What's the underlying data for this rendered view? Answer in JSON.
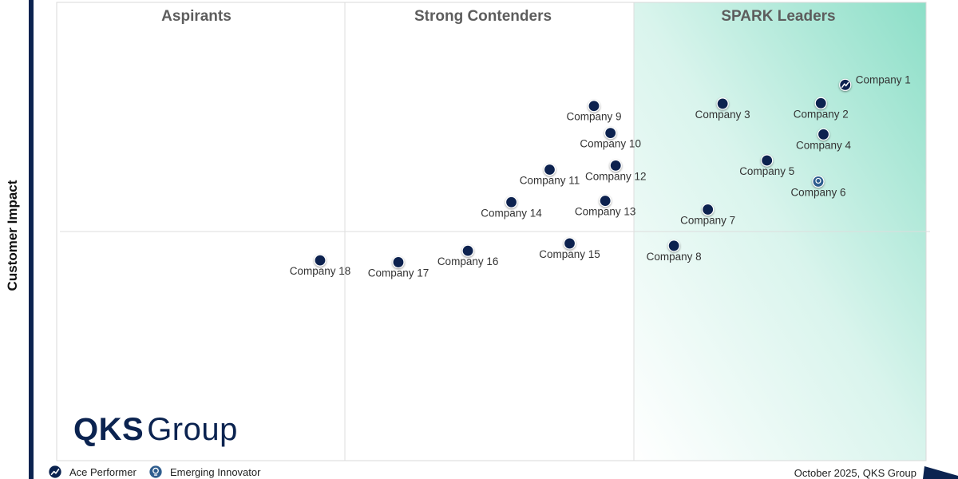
{
  "chart_data": {
    "type": "scatter",
    "title": "",
    "ylabel": "Customer Impact",
    "xlabel": "",
    "xlim": [
      0,
      100
    ],
    "ylim": [
      0,
      100
    ],
    "quadrants": [
      "Aspirants",
      "Strong Contenders",
      "SPARK Leaders"
    ],
    "points": [
      {
        "label": "Company 1",
        "x": 90.7,
        "y": 82.0,
        "marker": "ace"
      },
      {
        "label": "Company 2",
        "x": 87.9,
        "y": 78.0,
        "marker": "default"
      },
      {
        "label": "Company 3",
        "x": 76.6,
        "y": 77.9,
        "marker": "default"
      },
      {
        "label": "Company 4",
        "x": 88.2,
        "y": 71.2,
        "marker": "default"
      },
      {
        "label": "Company 5",
        "x": 81.7,
        "y": 65.5,
        "marker": "default"
      },
      {
        "label": "Company 6",
        "x": 87.6,
        "y": 60.9,
        "marker": "emerging"
      },
      {
        "label": "Company 7",
        "x": 74.9,
        "y": 54.8,
        "marker": "default"
      },
      {
        "label": "Company 8",
        "x": 71.0,
        "y": 46.9,
        "marker": "default"
      },
      {
        "label": "Company 9",
        "x": 61.8,
        "y": 77.4,
        "marker": "default"
      },
      {
        "label": "Company 10",
        "x": 63.7,
        "y": 71.5,
        "marker": "default"
      },
      {
        "label": "Company 11",
        "x": 56.7,
        "y": 63.5,
        "marker": "default"
      },
      {
        "label": "Company 12",
        "x": 64.3,
        "y": 64.4,
        "marker": "default"
      },
      {
        "label": "Company 13",
        "x": 63.1,
        "y": 56.7,
        "marker": "default"
      },
      {
        "label": "Company 14",
        "x": 52.3,
        "y": 56.4,
        "marker": "default"
      },
      {
        "label": "Company 15",
        "x": 59.0,
        "y": 47.4,
        "marker": "default"
      },
      {
        "label": "Company 16",
        "x": 47.3,
        "y": 45.8,
        "marker": "default"
      },
      {
        "label": "Company 17",
        "x": 39.3,
        "y": 43.3,
        "marker": "default"
      },
      {
        "label": "Company 18",
        "x": 30.3,
        "y": 43.7,
        "marker": "default"
      }
    ],
    "legend": [
      {
        "name": "Ace Performer",
        "marker": "ace"
      },
      {
        "name": "Emerging Innovator",
        "marker": "emerging"
      }
    ]
  },
  "branding": {
    "logo_bold": "QKS",
    "logo_light": "Group"
  },
  "footer": {
    "date": "October 2025, QKS Group"
  },
  "colors": {
    "dot": "#0b2350",
    "accent": "#2ec49a",
    "axis": "#0b2350"
  }
}
